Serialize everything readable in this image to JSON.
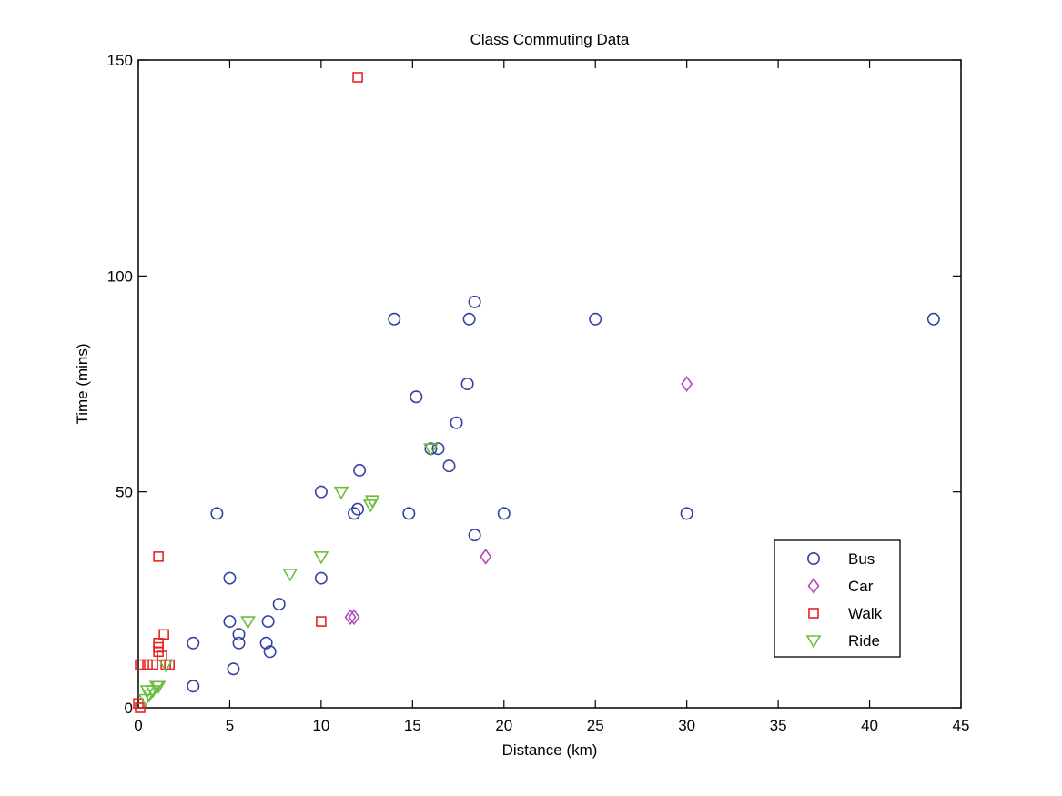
{
  "chart_data": {
    "type": "scatter",
    "title": "Class Commuting Data",
    "xlabel": "Distance (km)",
    "ylabel": "Time (mins)",
    "xlim": [
      0,
      45
    ],
    "ylim": [
      0,
      150
    ],
    "xticks": [
      0,
      5,
      10,
      15,
      20,
      25,
      30,
      35,
      40,
      45
    ],
    "yticks": [
      0,
      50,
      100,
      150
    ],
    "grid": false,
    "legend_position": "lower-right",
    "series": [
      {
        "name": "Bus",
        "marker": "circle",
        "color": "#3341a1",
        "points": [
          [
            3,
            15
          ],
          [
            3,
            5
          ],
          [
            4.3,
            45
          ],
          [
            5,
            30
          ],
          [
            5,
            20
          ],
          [
            5.2,
            9
          ],
          [
            5.5,
            17
          ],
          [
            5.5,
            15
          ],
          [
            7,
            15
          ],
          [
            7.1,
            20
          ],
          [
            7.2,
            13
          ],
          [
            7.7,
            24
          ],
          [
            10,
            50
          ],
          [
            10,
            30
          ],
          [
            11.8,
            45
          ],
          [
            12,
            46
          ],
          [
            12.1,
            55
          ],
          [
            14,
            90
          ],
          [
            14.8,
            45
          ],
          [
            15.2,
            72
          ],
          [
            16,
            60
          ],
          [
            16.4,
            60
          ],
          [
            17,
            56
          ],
          [
            17.4,
            66
          ],
          [
            18,
            75
          ],
          [
            18.1,
            90
          ],
          [
            18.4,
            94
          ],
          [
            18.4,
            40
          ],
          [
            20,
            45
          ],
          [
            25,
            90
          ],
          [
            30,
            45
          ],
          [
            43.5,
            90
          ]
        ]
      },
      {
        "name": "Car",
        "marker": "diamond",
        "color": "#b34ab8",
        "points": [
          [
            11.6,
            21
          ],
          [
            11.8,
            21
          ],
          [
            19,
            35
          ],
          [
            30,
            75
          ]
        ]
      },
      {
        "name": "Walk",
        "marker": "square",
        "color": "#e32626",
        "points": [
          [
            0,
            1
          ],
          [
            0.1,
            0
          ],
          [
            0.1,
            10
          ],
          [
            0.5,
            10
          ],
          [
            0.8,
            10
          ],
          [
            1.1,
            15
          ],
          [
            1.1,
            14
          ],
          [
            1.1,
            13
          ],
          [
            1.1,
            35
          ],
          [
            1.3,
            12
          ],
          [
            1.4,
            17
          ],
          [
            1.5,
            10
          ],
          [
            1.7,
            10
          ],
          [
            10,
            20
          ],
          [
            12,
            146
          ]
        ]
      },
      {
        "name": "Ride",
        "marker": "triangle-down",
        "color": "#6bbd3e",
        "points": [
          [
            0.4,
            2
          ],
          [
            0.5,
            4
          ],
          [
            0.6,
            3
          ],
          [
            0.8,
            4
          ],
          [
            1,
            5
          ],
          [
            1.1,
            5
          ],
          [
            1.5,
            10
          ],
          [
            6,
            20
          ],
          [
            8.3,
            31
          ],
          [
            10,
            35
          ],
          [
            11.1,
            50
          ],
          [
            12.7,
            47
          ],
          [
            12.8,
            48
          ],
          [
            16,
            60
          ]
        ]
      }
    ]
  }
}
